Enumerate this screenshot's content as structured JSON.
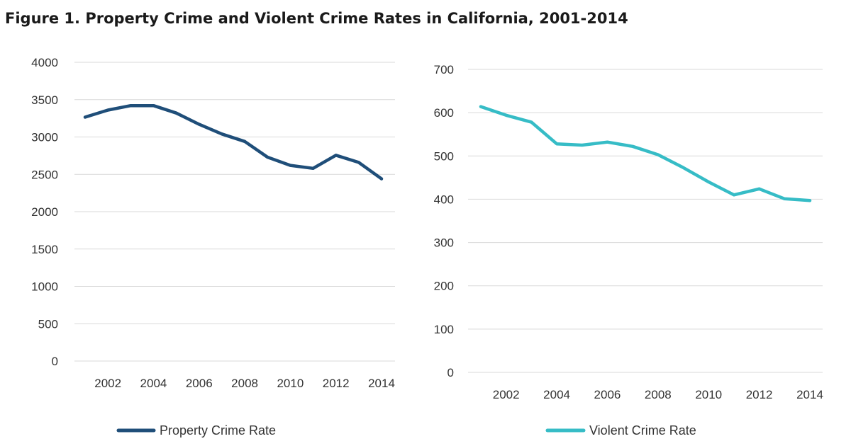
{
  "title": "Figure 1. Property Crime and Violent Crime Rates in California, 2001-2014",
  "chart_data": [
    {
      "type": "line",
      "title": "",
      "xlabel": "",
      "ylabel": "",
      "x": [
        2001,
        2002,
        2003,
        2004,
        2005,
        2006,
        2007,
        2008,
        2009,
        2010,
        2011,
        2012,
        2013,
        2014
      ],
      "series": [
        {
          "name": "Property Crime Rate",
          "color": "#1f4e79",
          "values": [
            3265,
            3360,
            3420,
            3420,
            3320,
            3170,
            3040,
            2940,
            2730,
            2620,
            2580,
            2755,
            2660,
            2440
          ]
        }
      ],
      "ylim": [
        0,
        4000
      ],
      "yticks": [
        0,
        500,
        1000,
        1500,
        2000,
        2500,
        3000,
        3500,
        4000
      ],
      "xticks": [
        2002,
        2004,
        2006,
        2008,
        2010,
        2012,
        2014
      ],
      "grid": true,
      "legend": "bottom"
    },
    {
      "type": "line",
      "title": "",
      "xlabel": "",
      "ylabel": "",
      "x": [
        2001,
        2002,
        2003,
        2004,
        2005,
        2006,
        2007,
        2008,
        2009,
        2010,
        2011,
        2012,
        2013,
        2014
      ],
      "series": [
        {
          "name": "Violent Crime Rate",
          "color": "#36bcc6",
          "values": [
            614,
            594,
            578,
            528,
            525,
            532,
            522,
            503,
            473,
            440,
            410,
            424,
            401,
            397
          ]
        }
      ],
      "ylim": [
        0,
        700
      ],
      "yticks": [
        0,
        100,
        200,
        300,
        400,
        500,
        600,
        700
      ],
      "xticks": [
        2002,
        2004,
        2006,
        2008,
        2010,
        2012,
        2014
      ],
      "grid": true,
      "legend": "bottom"
    }
  ]
}
